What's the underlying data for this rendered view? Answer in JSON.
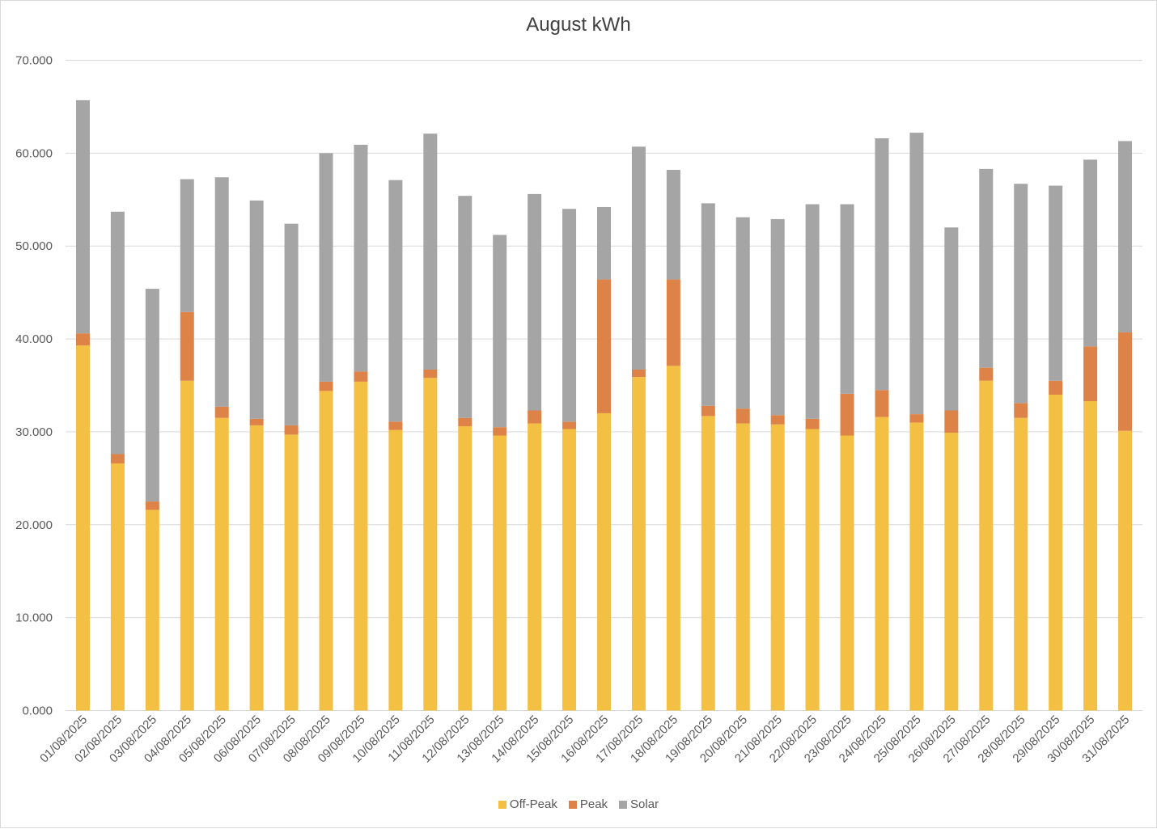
{
  "chart_data": {
    "type": "bar",
    "stacked": true,
    "title": "August kWh",
    "xlabel": "",
    "ylabel": "",
    "ylim": [
      0,
      70
    ],
    "yticks": [
      "0.000",
      "10.000",
      "20.000",
      "30.000",
      "40.000",
      "50.000",
      "60.000",
      "70.000"
    ],
    "grid": true,
    "legend_position": "bottom",
    "categories": [
      "01/08/2025",
      "02/08/2025",
      "03/08/2025",
      "04/08/2025",
      "05/08/2025",
      "06/08/2025",
      "07/08/2025",
      "08/08/2025",
      "09/08/2025",
      "10/08/2025",
      "11/08/2025",
      "12/08/2025",
      "13/08/2025",
      "14/08/2025",
      "15/08/2025",
      "16/08/2025",
      "17/08/2025",
      "18/08/2025",
      "19/08/2025",
      "20/08/2025",
      "21/08/2025",
      "22/08/2025",
      "23/08/2025",
      "24/08/2025",
      "25/08/2025",
      "26/08/2025",
      "27/08/2025",
      "28/08/2025",
      "29/08/2025",
      "30/08/2025",
      "31/08/2025"
    ],
    "series": [
      {
        "name": "Off-Peak",
        "color": "#f4c043",
        "values": [
          39.3,
          26.6,
          21.6,
          35.5,
          31.5,
          30.7,
          29.7,
          34.4,
          35.4,
          30.2,
          35.8,
          30.6,
          29.6,
          30.9,
          30.3,
          32.0,
          35.9,
          37.1,
          31.7,
          30.9,
          30.8,
          30.3,
          29.6,
          31.6,
          31.0,
          29.9,
          35.5,
          31.5,
          34.0,
          33.3,
          30.1
        ]
      },
      {
        "name": "Peak",
        "color": "#dd8347",
        "values": [
          1.3,
          1.0,
          0.9,
          7.4,
          1.2,
          0.7,
          1.0,
          1.0,
          1.1,
          0.9,
          0.9,
          0.9,
          0.9,
          1.4,
          0.8,
          14.4,
          0.8,
          9.3,
          1.1,
          1.6,
          1.0,
          1.1,
          4.5,
          2.9,
          0.9,
          2.4,
          1.4,
          1.6,
          1.5,
          5.9,
          10.6
        ]
      },
      {
        "name": "Solar",
        "color": "#a5a5a5",
        "values": [
          25.1,
          26.1,
          22.9,
          14.3,
          24.7,
          23.5,
          21.7,
          24.6,
          24.4,
          26.0,
          25.4,
          23.9,
          20.7,
          23.3,
          22.9,
          7.8,
          24.0,
          11.8,
          21.8,
          20.6,
          21.1,
          23.1,
          20.4,
          27.1,
          30.3,
          19.7,
          21.4,
          23.6,
          21.0,
          20.1,
          20.6
        ]
      }
    ]
  }
}
